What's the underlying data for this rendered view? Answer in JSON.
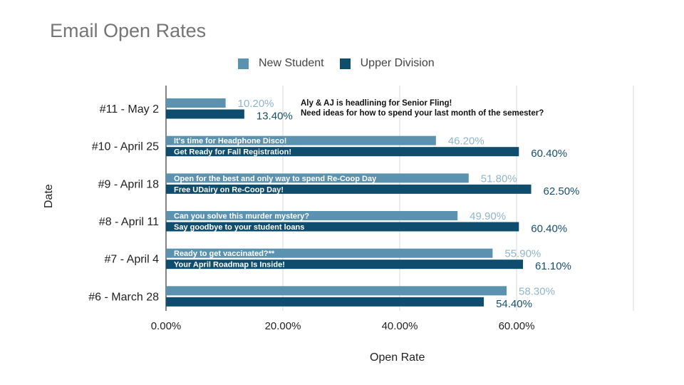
{
  "chart_data": {
    "type": "bar",
    "orientation": "horizontal",
    "title": "Email Open Rates",
    "xlabel": "Open Rate",
    "ylabel": "Date",
    "xlim": [
      0,
      0.8
    ],
    "x_ticks": [
      "0.00%",
      "20.00%",
      "40.00%",
      "60.00%"
    ],
    "grid": true,
    "legend_position": "top",
    "categories": [
      "#11 - May 2",
      "#10 - April 25",
      "#9 - April 18",
      "#8 - April 11",
      "#7 - April 4",
      "#6 - March 28"
    ],
    "series": [
      {
        "name": "New Student",
        "color": "#5b92b0",
        "values": [
          0.102,
          0.462,
          0.518,
          0.499,
          0.559,
          0.583
        ],
        "value_labels": [
          "10.20%",
          "46.20%",
          "51.80%",
          "49.90%",
          "55.90%",
          "58.30%"
        ],
        "annotations": [
          "",
          "It's time for Headphone Disco!",
          "Open for the best and only way to spend Re-Coop Day",
          "Can you solve this murder mystery?",
          "Ready to get vaccinated?**",
          ""
        ]
      },
      {
        "name": "Upper Division",
        "color": "#0e4d6e",
        "values": [
          0.134,
          0.604,
          0.625,
          0.604,
          0.611,
          0.544
        ],
        "value_labels": [
          "13.40%",
          "60.40%",
          "62.50%",
          "60.40%",
          "61.10%",
          "54.40%"
        ],
        "annotations": [
          "",
          "Get Ready for Fall Registration!",
          "Free UDairy on Re-Coop Day!",
          "Say goodbye to your student loans",
          "Your April Roadmap Is Inside!",
          ""
        ]
      }
    ],
    "callout": [
      "Aly & AJ is headlining for Senior Fling!",
      "Need ideas for how to spend your last month of the semester?"
    ]
  }
}
